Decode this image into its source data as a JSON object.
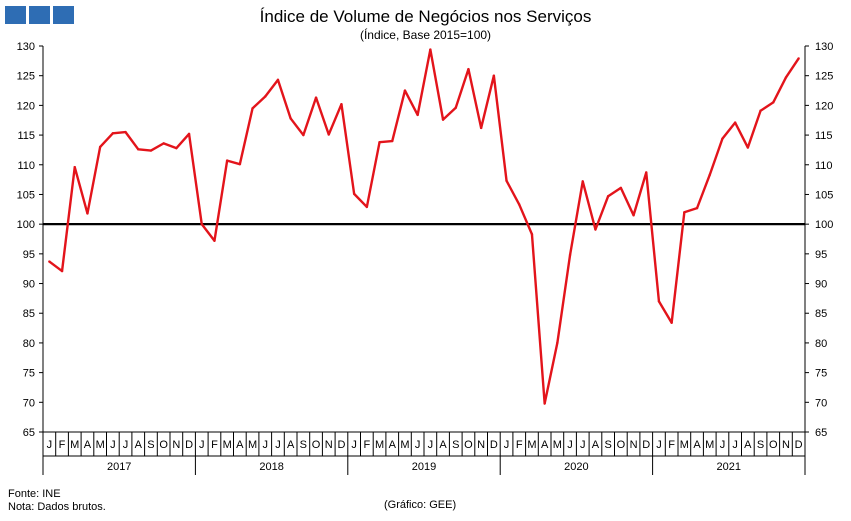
{
  "header": {
    "title": "Índice de Volume de Negócios nos Serviços",
    "subtitle": "(Índice, Base 2015=100)"
  },
  "footer": {
    "source": "Fonte: INE",
    "note": "Nota: Dados brutos.",
    "credit": "(Gráfico: GEE)"
  },
  "colors": {
    "logo": "#2e6db4",
    "series": "#e3141b",
    "reference": "#000000",
    "axis": "#000000"
  },
  "chart_data": {
    "type": "line",
    "title": "Índice de Volume de Negócios nos Serviços",
    "subtitle": "(Índice, Base 2015=100)",
    "ylim": [
      65,
      130
    ],
    "ytick_step": 5,
    "yticks_both_sides": true,
    "grid": false,
    "legend": "none",
    "month_labels": [
      "J",
      "F",
      "M",
      "A",
      "M",
      "J",
      "J",
      "A",
      "S",
      "O",
      "N",
      "D"
    ],
    "years": [
      "2017",
      "2018",
      "2019",
      "2020",
      "2021"
    ],
    "reference_line": 100,
    "series": [
      {
        "values": [
          93.7,
          92.1,
          109.6,
          101.8,
          113.0,
          115.3,
          115.5,
          112.6,
          112.4,
          113.6,
          112.8,
          115.2,
          100.0,
          97.2,
          110.7,
          110.1,
          119.5,
          121.5,
          124.3,
          117.8,
          115.0,
          121.3,
          115.1,
          120.2,
          105.1,
          102.9,
          113.8,
          114.0,
          122.5,
          118.4,
          129.4,
          117.6,
          119.6,
          126.1,
          116.2,
          125.0,
          107.3,
          103.3,
          98.3,
          69.8,
          80.0,
          94.8,
          107.2,
          99.1,
          104.7,
          106.1,
          101.5,
          108.7,
          87.0,
          83.4,
          102.0,
          102.7,
          108.3,
          114.4,
          117.1,
          112.9,
          119.1,
          120.5,
          124.7,
          127.9
        ]
      }
    ]
  }
}
